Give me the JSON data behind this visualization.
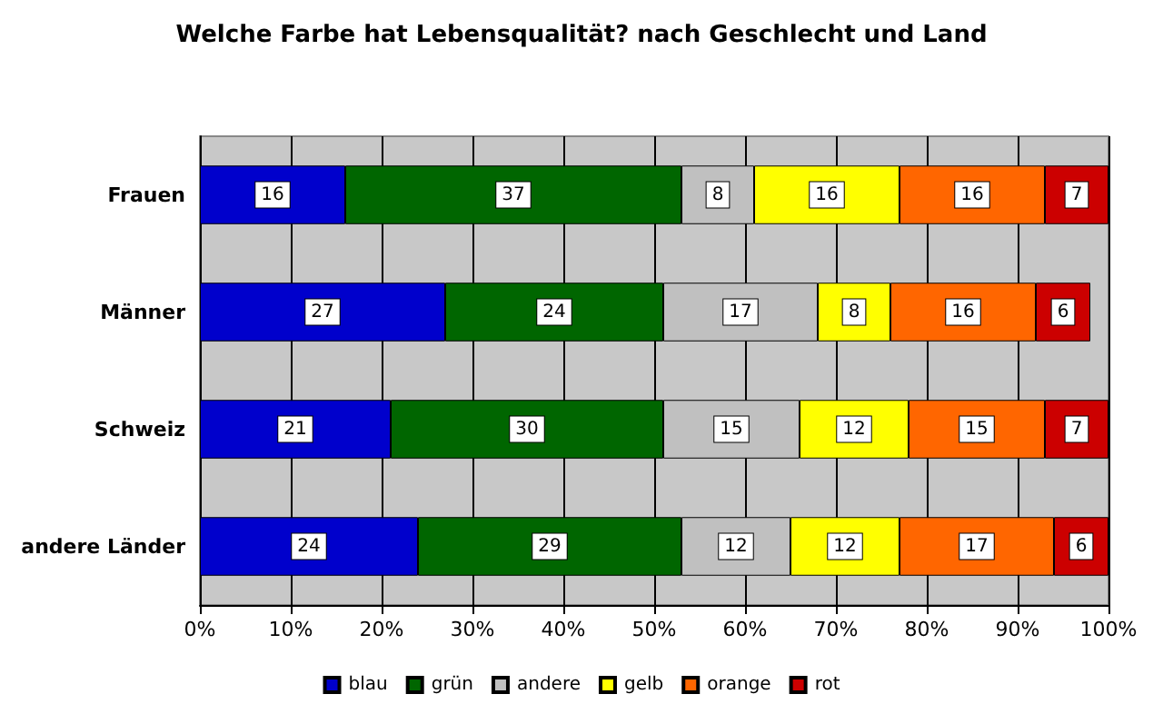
{
  "chart_data": {
    "type": "bar",
    "title": "Welche Farbe hat Lebensqualität? nach Geschlecht und Land",
    "orientation": "horizontal",
    "stacked": true,
    "data_labels": true,
    "grid": "x",
    "legend": "bottom",
    "categories": [
      "Frauen",
      "Männer",
      "Schweiz",
      "andere Länder"
    ],
    "xlim": [
      0,
      100
    ],
    "xticks": [
      {
        "value": 0,
        "label": "0%"
      },
      {
        "value": 10,
        "label": "10%"
      },
      {
        "value": 20,
        "label": "20%"
      },
      {
        "value": 30,
        "label": "30%"
      },
      {
        "value": 40,
        "label": "40%"
      },
      {
        "value": 50,
        "label": "50%"
      },
      {
        "value": 60,
        "label": "60%"
      },
      {
        "value": 70,
        "label": "70%"
      },
      {
        "value": 80,
        "label": "80%"
      },
      {
        "value": 90,
        "label": "90%"
      },
      {
        "value": 100,
        "label": "100%"
      }
    ],
    "series": [
      {
        "name": "blau",
        "color": "#0000cc",
        "values": [
          16,
          27,
          21,
          24
        ]
      },
      {
        "name": "grün",
        "color": "#006600",
        "values": [
          37,
          24,
          30,
          29
        ]
      },
      {
        "name": "andere",
        "color": "#c0c0c0",
        "values": [
          8,
          17,
          15,
          12
        ]
      },
      {
        "name": "gelb",
        "color": "#ffff00",
        "values": [
          16,
          8,
          12,
          12
        ]
      },
      {
        "name": "orange",
        "color": "#ff6600",
        "values": [
          16,
          16,
          15,
          17
        ]
      },
      {
        "name": "rot",
        "color": "#cc0000",
        "values": [
          7,
          6,
          7,
          6
        ]
      }
    ]
  }
}
